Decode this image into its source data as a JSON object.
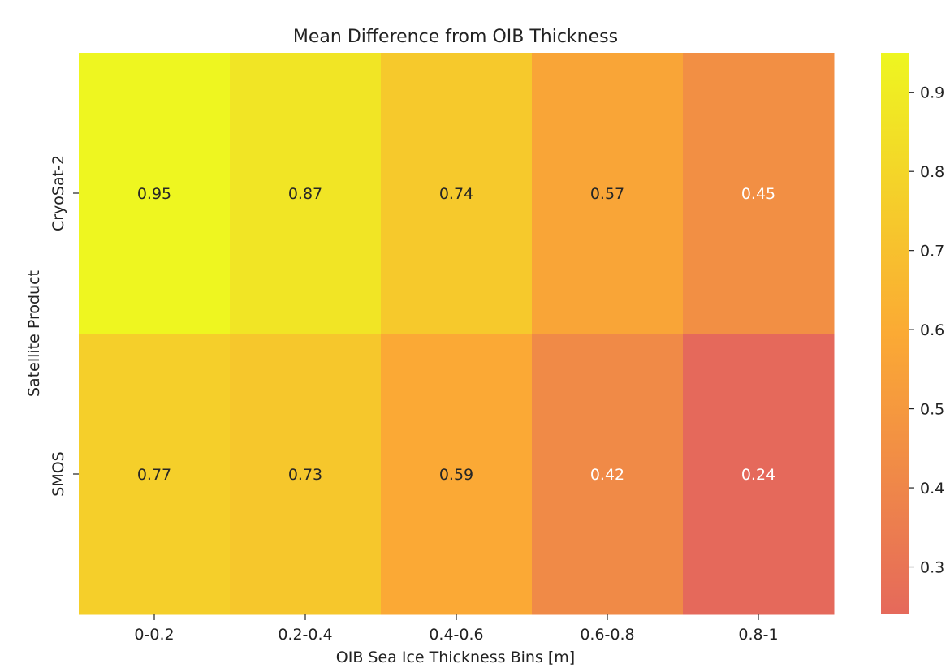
{
  "chart_data": {
    "type": "heatmap",
    "title": "Mean Difference from OIB Thickness",
    "xlabel": "OIB Sea Ice Thickness Bins [m]",
    "ylabel": "Satellite Product",
    "x_categories": [
      "0-0.2",
      "0.2-0.4",
      "0.4-0.6",
      "0.6-0.8",
      "0.8-1"
    ],
    "y_categories": [
      "CryoSat-2",
      "SMOS"
    ],
    "values": [
      [
        0.95,
        0.87,
        0.74,
        0.57,
        0.45
      ],
      [
        0.77,
        0.73,
        0.59,
        0.42,
        0.24
      ]
    ],
    "value_labels": [
      [
        "0.95",
        "0.87",
        "0.74",
        "0.57",
        "0.45"
      ],
      [
        "0.77",
        "0.73",
        "0.59",
        "0.42",
        "0.24"
      ]
    ],
    "colorbar": {
      "min": 0.24,
      "max": 0.95,
      "ticks": [
        0.3,
        0.4,
        0.5,
        0.6,
        0.7,
        0.8,
        0.9
      ],
      "tick_labels": [
        "0.3",
        "0.4",
        "0.5",
        "0.6",
        "0.7",
        "0.8",
        "0.9"
      ],
      "color_low": "#e5695b",
      "color_mid": "#fbaa34",
      "color_high": "#eef620"
    }
  }
}
